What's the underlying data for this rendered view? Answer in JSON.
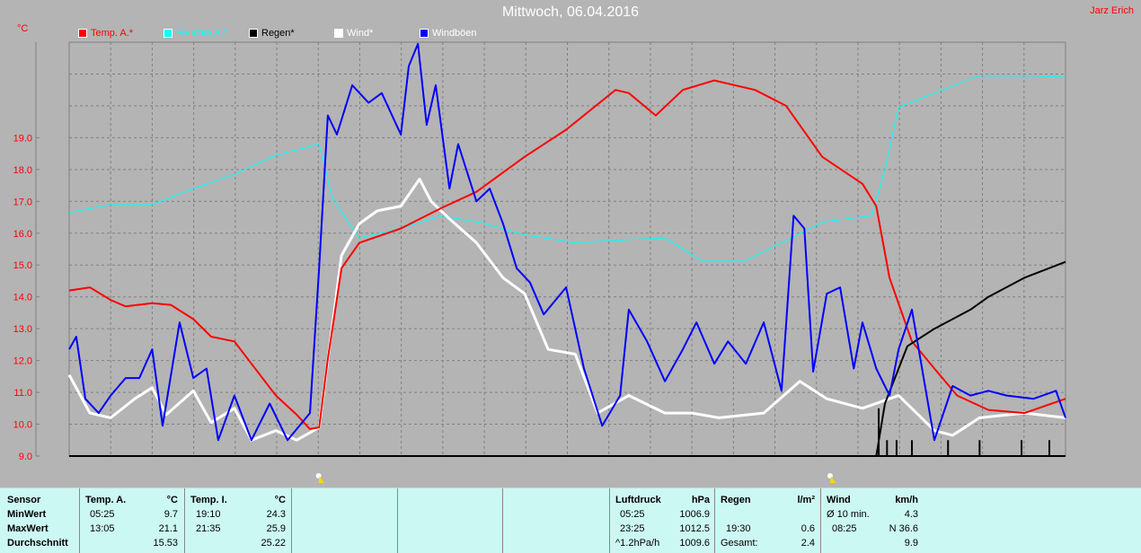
{
  "header": {
    "title": "Mittwoch, 06.04.2016",
    "author": "Jarz Erich",
    "unit": "°C"
  },
  "colors": {
    "temp": "#ff0000",
    "humidity": "#00ffff",
    "rain": "#000000",
    "wind": "#ffffff",
    "gusts": "#0000ff",
    "background": "#b4b4b4",
    "panel": "#ccf8f4"
  },
  "chart_data": {
    "type": "line",
    "title": "Mittwoch, 06.04.2016",
    "ylabel": "°C",
    "xlabel": "",
    "xlim": [
      0,
      24
    ],
    "ylim": [
      9,
      22
    ],
    "yticks": [
      "9.0",
      "10.0",
      "11.0",
      "12.0",
      "13.0",
      "14.0",
      "15.0",
      "16.0",
      "17.0",
      "18.0",
      "19.0"
    ],
    "ytick_values": [
      9,
      10,
      11,
      12,
      13,
      14,
      15,
      16,
      17,
      18,
      19
    ],
    "grid": true,
    "legend_position": "top",
    "series": [
      {
        "name": "Temp. A.*",
        "color": "#ff0000",
        "points": [
          [
            0,
            14.2
          ],
          [
            0.5,
            14.3
          ],
          [
            1,
            13.9
          ],
          [
            1.36,
            13.7
          ],
          [
            2,
            13.8
          ],
          [
            2.45,
            13.75
          ],
          [
            2.99,
            13.3
          ],
          [
            3.42,
            12.75
          ],
          [
            3.98,
            12.6
          ],
          [
            4.39,
            11.9
          ],
          [
            4.98,
            10.9
          ],
          [
            5.48,
            10.3
          ],
          [
            5.8,
            9.85
          ],
          [
            6.02,
            9.9
          ],
          [
            6.23,
            12.05
          ],
          [
            6.56,
            14.9
          ],
          [
            6.99,
            15.7
          ],
          [
            7.99,
            16.15
          ],
          [
            8.98,
            16.8
          ],
          [
            9.81,
            17.3
          ],
          [
            10.97,
            18.4
          ],
          [
            11.97,
            19.25
          ],
          [
            13.16,
            20.5
          ],
          [
            13.48,
            20.4
          ],
          [
            14.13,
            19.7
          ],
          [
            14.78,
            20.5
          ],
          [
            15.54,
            20.8
          ],
          [
            16.52,
            20.5
          ],
          [
            17.27,
            20.0
          ],
          [
            18.14,
            18.4
          ],
          [
            19.11,
            17.55
          ],
          [
            19.44,
            16.85
          ],
          [
            19.76,
            14.6
          ],
          [
            20.3,
            12.6
          ],
          [
            20.84,
            11.75
          ],
          [
            21.39,
            10.9
          ],
          [
            22.14,
            10.45
          ],
          [
            23.01,
            10.35
          ],
          [
            24,
            10.8
          ]
        ]
      },
      {
        "name": "Feuchte A.*",
        "color": "#00ffff",
        "points": [
          [
            0,
            16.65
          ],
          [
            1,
            16.9
          ],
          [
            2,
            16.9
          ],
          [
            2.99,
            17.4
          ],
          [
            3.98,
            17.85
          ],
          [
            4.98,
            18.45
          ],
          [
            6.02,
            18.8
          ],
          [
            6.34,
            17.1
          ],
          [
            6.99,
            15.85
          ],
          [
            7.99,
            16.15
          ],
          [
            8.98,
            16.55
          ],
          [
            10.02,
            16.3
          ],
          [
            10.97,
            15.95
          ],
          [
            12.19,
            15.7
          ],
          [
            13.48,
            15.8
          ],
          [
            14.35,
            15.85
          ],
          [
            15.22,
            15.15
          ],
          [
            16.3,
            15.15
          ],
          [
            17.16,
            15.7
          ],
          [
            18.14,
            16.35
          ],
          [
            19.33,
            16.55
          ],
          [
            19.65,
            18.0
          ],
          [
            19.98,
            19.95
          ],
          [
            20.84,
            20.4
          ],
          [
            21.93,
            20.95
          ],
          [
            23.01,
            20.95
          ],
          [
            24,
            20.9
          ]
        ]
      },
      {
        "name": "Regen*",
        "color": "#000000",
        "points": [
          [
            0,
            9.0
          ],
          [
            19.44,
            9.0
          ],
          [
            19.65,
            10.65
          ],
          [
            20.19,
            12.45
          ],
          [
            20.84,
            13.0
          ],
          [
            21.71,
            13.6
          ],
          [
            22.14,
            14.0
          ],
          [
            23.01,
            14.6
          ],
          [
            24,
            15.1
          ]
        ],
        "bars": [
          [
            19.5,
            10.5
          ],
          [
            19.7,
            9.5
          ],
          [
            19.93,
            9.5
          ],
          [
            20.3,
            9.5
          ],
          [
            21.17,
            9.5
          ],
          [
            21.93,
            9.5
          ],
          [
            22.94,
            9.5
          ],
          [
            23.61,
            9.5
          ]
        ]
      },
      {
        "name": "Wind*",
        "color": "#ffffff",
        "points": [
          [
            0,
            11.55
          ],
          [
            0.5,
            10.35
          ],
          [
            1,
            10.2
          ],
          [
            1.58,
            10.8
          ],
          [
            2,
            11.15
          ],
          [
            2.34,
            10.3
          ],
          [
            2.99,
            11.05
          ],
          [
            3.42,
            10.05
          ],
          [
            3.98,
            10.5
          ],
          [
            4.39,
            9.5
          ],
          [
            4.98,
            9.8
          ],
          [
            5.48,
            9.5
          ],
          [
            6.02,
            9.9
          ],
          [
            6.56,
            15.3
          ],
          [
            6.99,
            16.3
          ],
          [
            7.42,
            16.7
          ],
          [
            7.99,
            16.85
          ],
          [
            8.44,
            17.7
          ],
          [
            8.72,
            17.0
          ],
          [
            9.16,
            16.45
          ],
          [
            9.81,
            15.7
          ],
          [
            10.45,
            14.6
          ],
          [
            10.97,
            14.1
          ],
          [
            11.54,
            12.35
          ],
          [
            12.19,
            12.2
          ],
          [
            12.73,
            10.35
          ],
          [
            13.48,
            10.9
          ],
          [
            14.35,
            10.35
          ],
          [
            15.0,
            10.35
          ],
          [
            15.65,
            10.2
          ],
          [
            16.73,
            10.35
          ],
          [
            17.6,
            11.35
          ],
          [
            18.25,
            10.8
          ],
          [
            19.11,
            10.5
          ],
          [
            19.98,
            10.9
          ],
          [
            20.84,
            9.8
          ],
          [
            21.28,
            9.65
          ],
          [
            21.93,
            10.2
          ],
          [
            23.01,
            10.35
          ],
          [
            24,
            10.2
          ]
        ]
      },
      {
        "name": "Windböen",
        "color": "#0000ff",
        "points": [
          [
            0,
            12.35
          ],
          [
            0.17,
            12.75
          ],
          [
            0.39,
            10.8
          ],
          [
            0.71,
            10.35
          ],
          [
            1,
            10.9
          ],
          [
            1.36,
            11.45
          ],
          [
            1.69,
            11.45
          ],
          [
            2,
            12.35
          ],
          [
            2.25,
            9.95
          ],
          [
            2.66,
            13.2
          ],
          [
            2.99,
            11.45
          ],
          [
            3.31,
            11.75
          ],
          [
            3.59,
            9.5
          ],
          [
            3.98,
            10.9
          ],
          [
            4.39,
            9.5
          ],
          [
            4.83,
            10.65
          ],
          [
            5.26,
            9.5
          ],
          [
            5.8,
            10.35
          ],
          [
            6.02,
            14.9
          ],
          [
            6.23,
            19.7
          ],
          [
            6.45,
            19.1
          ],
          [
            6.82,
            20.65
          ],
          [
            7.21,
            20.1
          ],
          [
            7.53,
            20.4
          ],
          [
            7.99,
            19.1
          ],
          [
            8.18,
            21.25
          ],
          [
            8.4,
            21.95
          ],
          [
            8.61,
            19.4
          ],
          [
            8.83,
            20.65
          ],
          [
            9.16,
            17.4
          ],
          [
            9.37,
            18.8
          ],
          [
            9.81,
            17.0
          ],
          [
            10.13,
            17.4
          ],
          [
            10.45,
            16.3
          ],
          [
            10.78,
            14.9
          ],
          [
            11.1,
            14.45
          ],
          [
            11.43,
            13.45
          ],
          [
            11.97,
            14.3
          ],
          [
            12.4,
            11.75
          ],
          [
            12.84,
            9.95
          ],
          [
            13.27,
            10.9
          ],
          [
            13.48,
            13.6
          ],
          [
            13.92,
            12.6
          ],
          [
            14.35,
            11.35
          ],
          [
            14.78,
            12.35
          ],
          [
            15.11,
            13.2
          ],
          [
            15.54,
            11.9
          ],
          [
            15.87,
            12.6
          ],
          [
            16.3,
            11.9
          ],
          [
            16.73,
            13.2
          ],
          [
            17.16,
            11.05
          ],
          [
            17.45,
            16.55
          ],
          [
            17.71,
            16.15
          ],
          [
            17.92,
            11.65
          ],
          [
            18.25,
            14.1
          ],
          [
            18.57,
            14.3
          ],
          [
            18.9,
            11.75
          ],
          [
            19.11,
            13.2
          ],
          [
            19.44,
            11.75
          ],
          [
            19.76,
            10.9
          ],
          [
            19.98,
            12.35
          ],
          [
            20.3,
            13.6
          ],
          [
            20.84,
            9.5
          ],
          [
            21.28,
            11.2
          ],
          [
            21.71,
            10.9
          ],
          [
            22.14,
            11.05
          ],
          [
            22.58,
            10.9
          ],
          [
            23.23,
            10.8
          ],
          [
            23.77,
            11.05
          ],
          [
            24,
            10.2
          ]
        ]
      }
    ]
  },
  "panel": {
    "temp_a": {
      "h1": "Sensor",
      "h2": "Temp. A.",
      "h3": "°C",
      "rows": [
        [
          "MinWert",
          "05:25",
          "9.7"
        ],
        [
          "MaxWert",
          "13:05",
          "21.1"
        ],
        [
          "Durchschnitt",
          "",
          "15.53"
        ]
      ]
    },
    "temp_i": {
      "h1": "Temp. I.",
      "h2": "°C",
      "rows": [
        [
          "19:10",
          "24.3"
        ],
        [
          "21:35",
          "25.9"
        ],
        [
          "",
          "25.22"
        ]
      ]
    },
    "pressure": {
      "h1": "Luftdruck",
      "h2": "hPa",
      "rows": [
        [
          "05:25",
          "1006.9"
        ],
        [
          "23:25",
          "1012.5"
        ],
        [
          "^1.2hPa/h",
          "1009.6"
        ]
      ]
    },
    "rain": {
      "h1": "Regen",
      "h2": "l/m²",
      "rows": [
        [
          "",
          ""
        ],
        [
          "19:30",
          "0.6"
        ],
        [
          "Gesamt:",
          "2.4"
        ]
      ]
    },
    "wind": {
      "h1": "Wind",
      "h2": "km/h",
      "rows": [
        [
          "Ø 10 min.",
          "4.3"
        ],
        [
          "08:25",
          "N 36.6"
        ],
        [
          "",
          "9.9"
        ]
      ]
    }
  }
}
